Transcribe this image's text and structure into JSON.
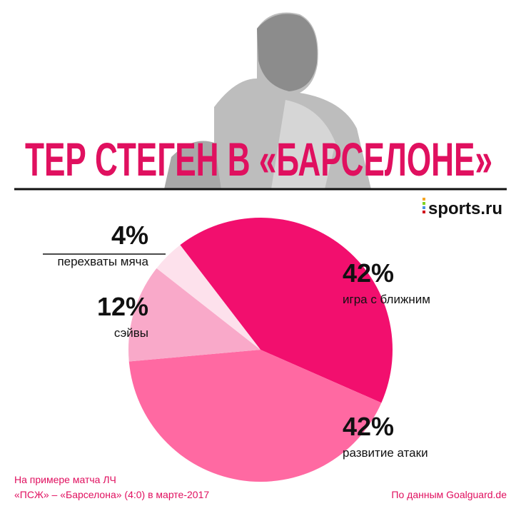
{
  "header": {
    "title": "ТЕР СТЕГЕН В «БАРСЕЛОНЕ»",
    "logo": "sports.ru"
  },
  "chart_data": {
    "type": "pie",
    "categories": [
      "игра с ближним",
      "развитие атаки",
      "сэйвы",
      "перехваты мяча"
    ],
    "values": [
      42,
      42,
      12,
      4
    ],
    "value_labels": [
      "42%",
      "42%",
      "12%",
      "4%"
    ],
    "colors": [
      "#f20f6e",
      "#ff69a2",
      "#f9a9c9",
      "#fde1ec"
    ]
  },
  "footer": {
    "note": [
      "На примере матча ЛЧ",
      "«ПСЖ» – «Барселона» (4:0) в марте-2017"
    ],
    "source": "По данным Goalguard.de"
  }
}
